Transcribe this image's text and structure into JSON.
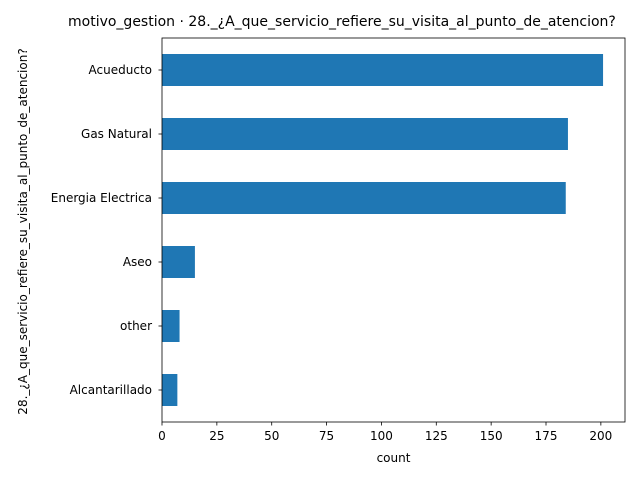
{
  "chart_data": {
    "type": "bar",
    "orientation": "horizontal",
    "title": "motivo_gestion · 28._¿A_que_servicio_refiere_su_visita_al_punto_de_atencion?",
    "xlabel": "count",
    "ylabel": "28._¿A_que_servicio_refiere_su_visita_al_punto_de_atencion?",
    "categories": [
      "Alcantarillado",
      "other",
      "Aseo",
      "Energia Electrica",
      "Gas Natural",
      "Acueducto"
    ],
    "values": [
      7,
      8,
      15,
      184,
      185,
      201
    ],
    "xlim": [
      0,
      211
    ],
    "xticks": [
      0,
      25,
      50,
      75,
      100,
      125,
      150,
      175,
      200
    ],
    "grid": false,
    "color": "#1f77b4"
  }
}
